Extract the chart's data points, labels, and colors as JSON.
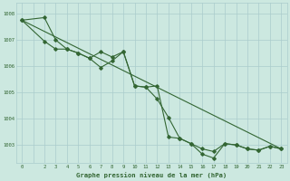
{
  "background_color": "#cce8e0",
  "grid_color": "#aacccc",
  "line_color": "#336633",
  "title": "Graphe pression niveau de la mer (hPa)",
  "xlim": [
    -0.5,
    23.5
  ],
  "ylim": [
    1002.3,
    1008.4
  ],
  "yticks": [
    1003,
    1004,
    1005,
    1006,
    1007,
    1008
  ],
  "series1": {
    "x": [
      0,
      23
    ],
    "y": [
      1007.75,
      1002.85
    ]
  },
  "series2": {
    "x": [
      0,
      2,
      3,
      4,
      5,
      6,
      7,
      8,
      9,
      10,
      11,
      12,
      13,
      14,
      15,
      16,
      17,
      18,
      19,
      20,
      21,
      22,
      23
    ],
    "y": [
      1007.75,
      1006.95,
      1006.65,
      1006.65,
      1006.5,
      1006.3,
      1006.55,
      1006.35,
      1006.55,
      1005.25,
      1005.2,
      1005.25,
      1003.3,
      1003.25,
      1003.05,
      1002.85,
      1002.75,
      1003.05,
      1003.0,
      1002.85,
      1002.8,
      1002.95,
      1002.85
    ]
  },
  "series3": {
    "x": [
      0,
      2,
      3,
      4,
      5,
      6,
      7,
      8,
      9,
      10,
      11,
      12,
      13,
      14,
      15,
      16,
      17,
      18,
      19,
      20,
      21,
      22,
      23
    ],
    "y": [
      1007.75,
      1007.85,
      1007.0,
      1006.65,
      1006.5,
      1006.3,
      1005.95,
      1006.2,
      1006.55,
      1005.25,
      1005.2,
      1004.75,
      1004.05,
      1003.25,
      1003.05,
      1002.65,
      1002.5,
      1003.05,
      1003.0,
      1002.85,
      1002.8,
      1002.95,
      1002.85
    ]
  }
}
